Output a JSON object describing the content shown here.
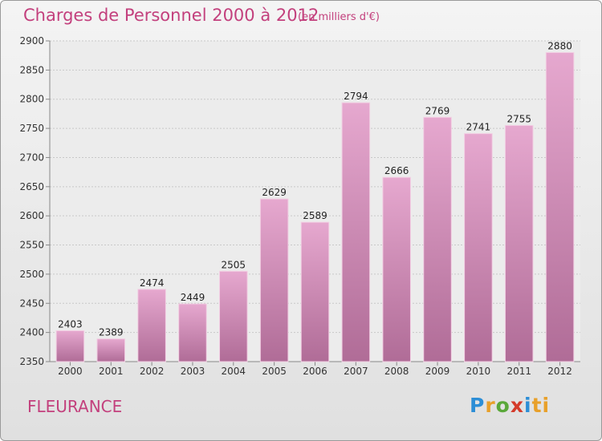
{
  "chart_data": {
    "type": "bar",
    "title": "Charges de Personnel 2000 à 2012",
    "subtitle": "(en milliers d'€)",
    "categories": [
      "2000",
      "2001",
      "2002",
      "2003",
      "2004",
      "2005",
      "2006",
      "2007",
      "2008",
      "2009",
      "2010",
      "2011",
      "2012"
    ],
    "values": [
      2403,
      2389,
      2474,
      2449,
      2505,
      2629,
      2589,
      2794,
      2666,
      2769,
      2741,
      2755,
      2880
    ],
    "ylim": [
      2350,
      2900
    ],
    "yticks": [
      2350,
      2400,
      2450,
      2500,
      2550,
      2600,
      2650,
      2700,
      2750,
      2800,
      2850,
      2900
    ],
    "grid": true,
    "bar_color": "#d68fb8"
  },
  "footer": {
    "location": "FLEURANCE",
    "logo_letters": [
      "P",
      "r",
      "o",
      "x",
      "i",
      "ti"
    ]
  }
}
